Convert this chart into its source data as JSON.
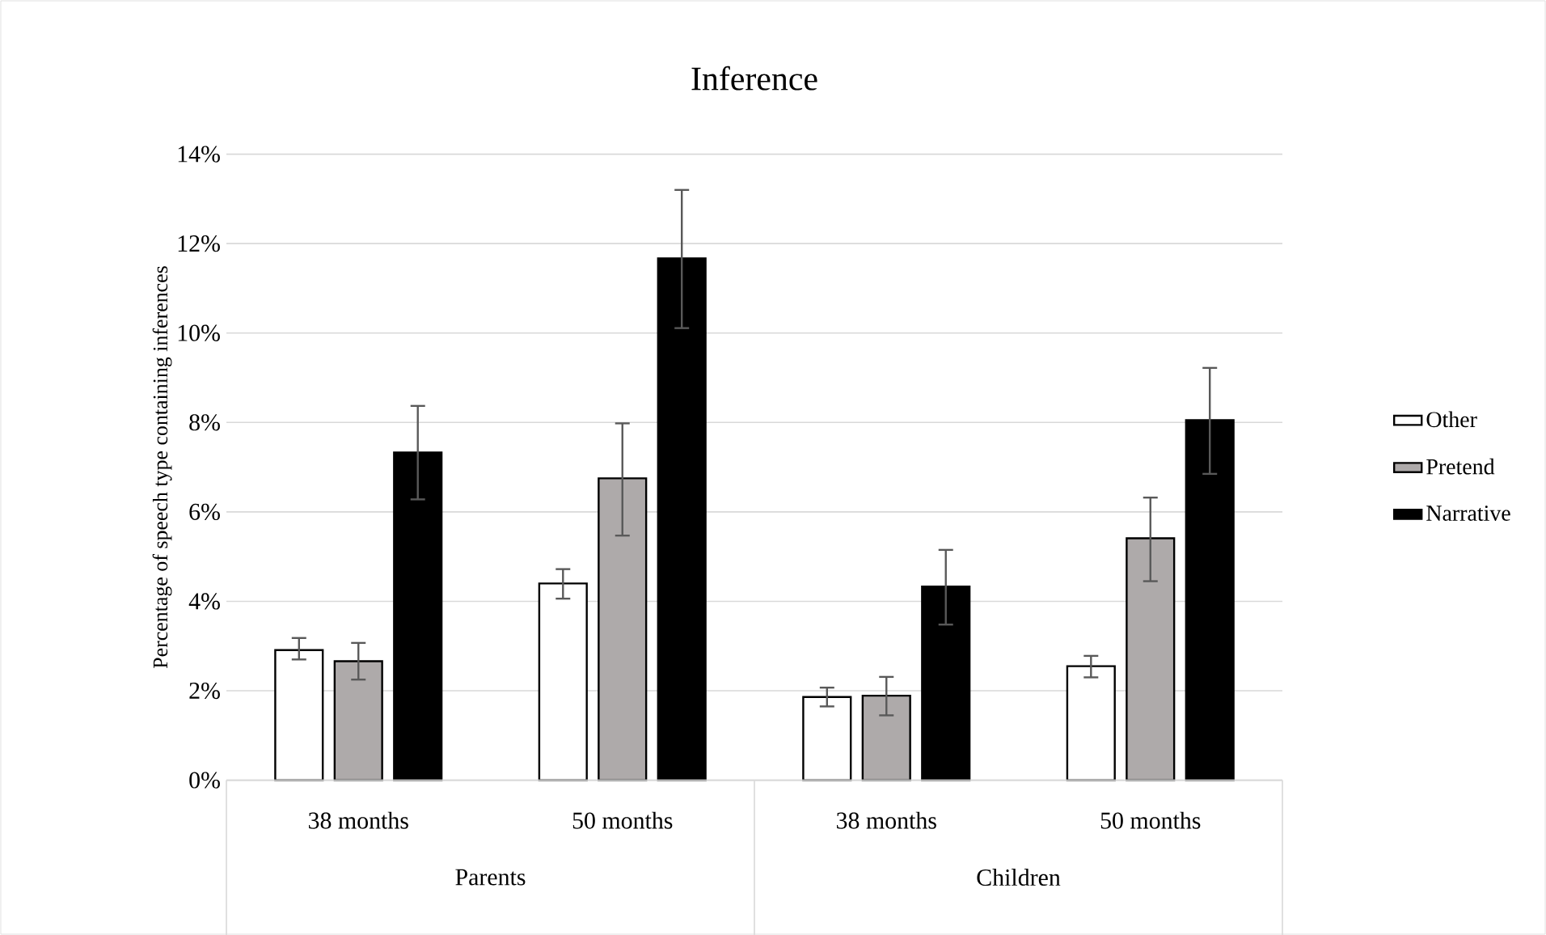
{
  "chart_data": {
    "type": "bar",
    "title": "Inference",
    "ylabel": "Percentage of speech type containing inferences",
    "categories": [
      "38 months",
      "50 months",
      "38 months",
      "50 months"
    ],
    "annotations": [
      "Parents",
      "Children"
    ],
    "ylim": [
      0,
      14
    ],
    "yticks": [
      {
        "value": 0,
        "label": "0%"
      },
      {
        "value": 2,
        "label": "2%"
      },
      {
        "value": 4,
        "label": "4%"
      },
      {
        "value": 6,
        "label": "6%"
      },
      {
        "value": 8,
        "label": "8%"
      },
      {
        "value": 10,
        "label": "10%"
      },
      {
        "value": 12,
        "label": "12%"
      },
      {
        "value": 14,
        "label": "14%"
      }
    ],
    "grid": "y",
    "legend": "right",
    "series": [
      {
        "name": "Other",
        "color": "#ffffff",
        "values": [
          2.91,
          4.4,
          1.86,
          2.55
        ],
        "errors": [
          [
            2.7,
            3.18
          ],
          [
            4.06,
            4.72
          ],
          [
            1.65,
            2.07
          ],
          [
            2.3,
            2.78
          ]
        ]
      },
      {
        "name": "Pretend",
        "color": "#aeaaaa",
        "values": [
          2.66,
          6.75,
          1.89,
          5.41
        ],
        "errors": [
          [
            2.25,
            3.07
          ],
          [
            5.47,
            7.98
          ],
          [
            1.45,
            2.31
          ],
          [
            4.45,
            6.32
          ]
        ]
      },
      {
        "name": "Narrative",
        "color": "#000000",
        "values": [
          7.33,
          11.67,
          4.33,
          8.05
        ],
        "errors": [
          [
            6.28,
            8.37
          ],
          [
            10.11,
            13.2
          ],
          [
            3.48,
            5.15
          ],
          [
            6.85,
            9.22
          ]
        ]
      }
    ]
  }
}
